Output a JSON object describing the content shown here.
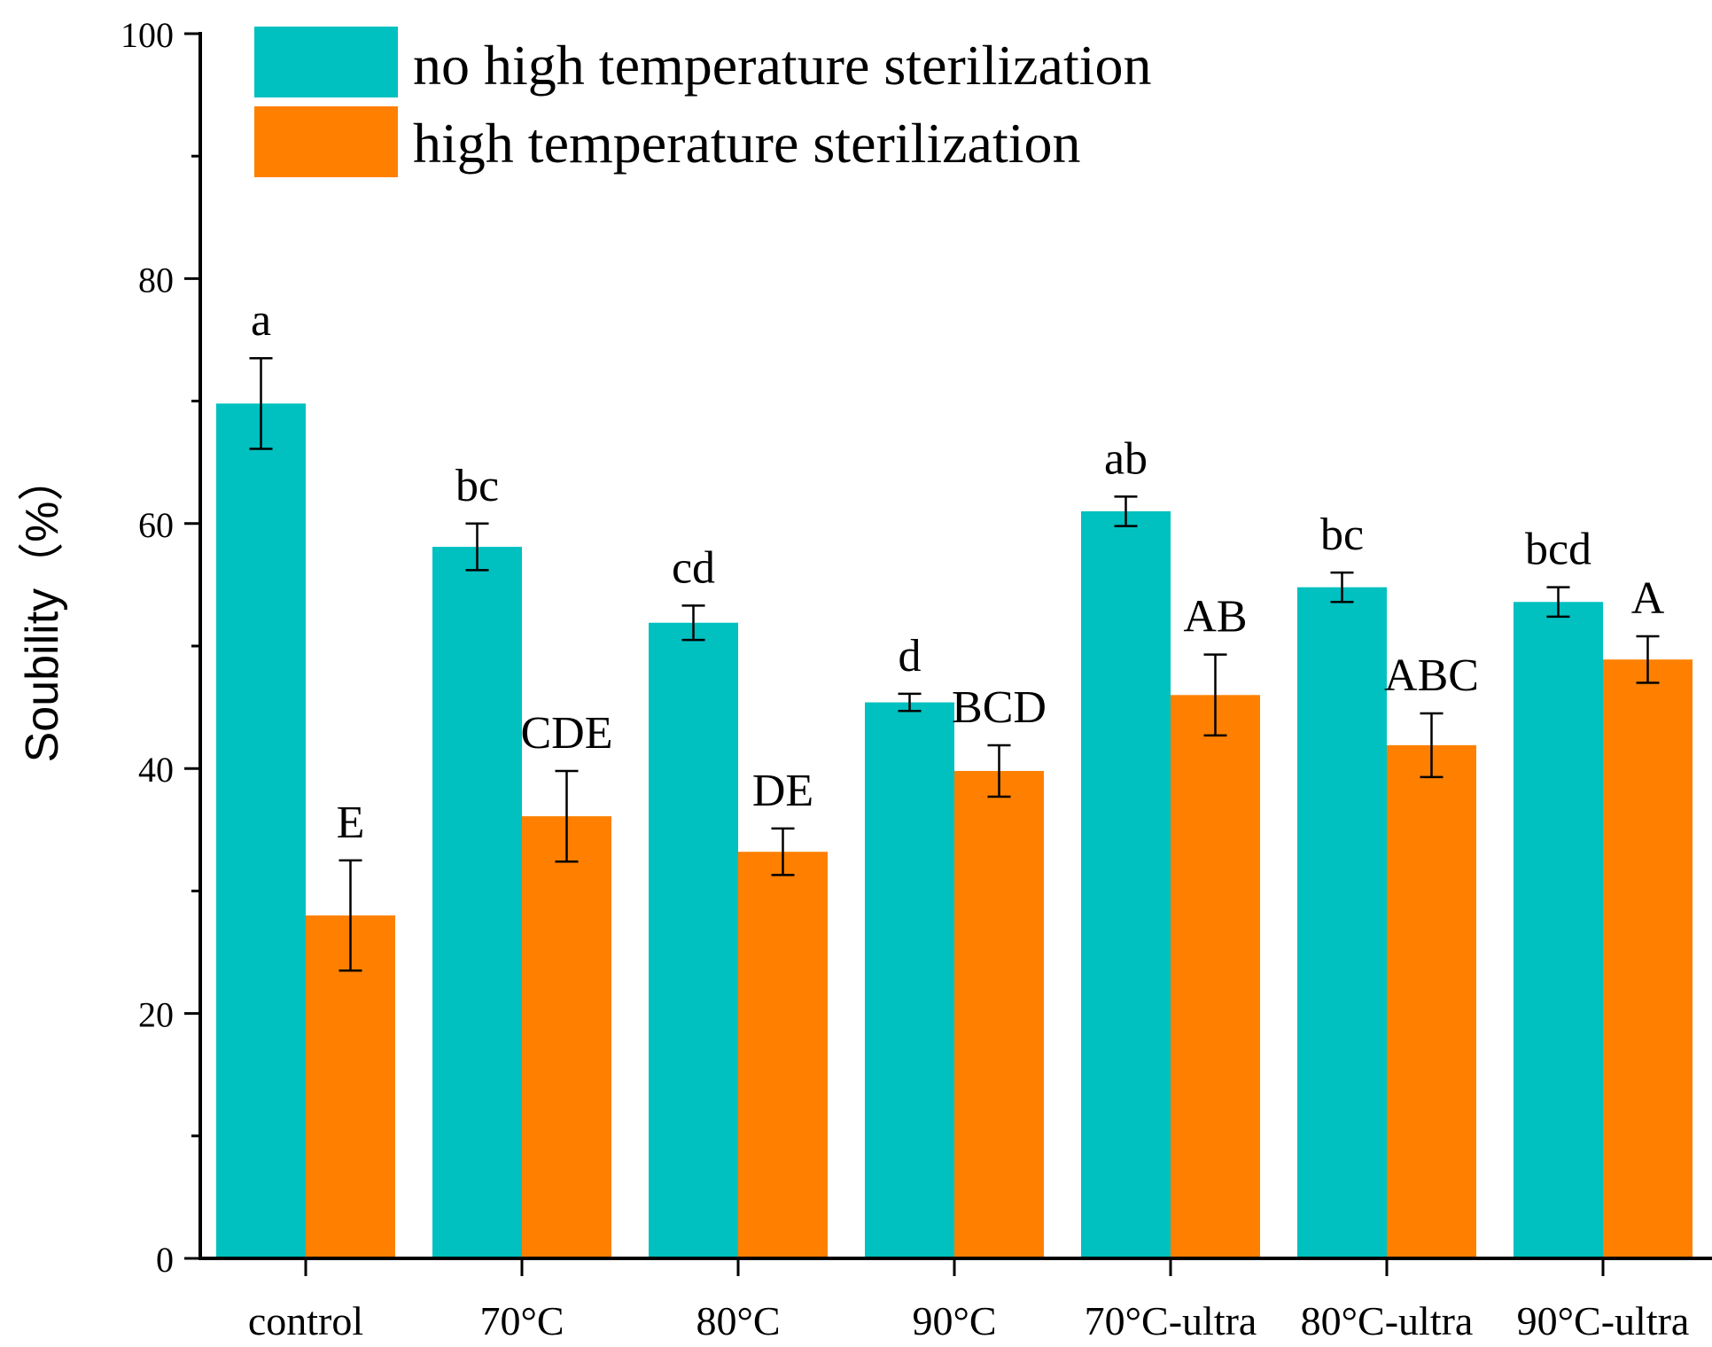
{
  "chart_data": {
    "type": "bar",
    "title": "",
    "xlabel": "",
    "ylabel": "Soubility（%）",
    "ylim": [
      0,
      100
    ],
    "yticks": [
      0,
      20,
      40,
      60,
      80,
      100
    ],
    "yminor_step": 10,
    "grid": false,
    "legend_position": "top-left",
    "categories": [
      "control",
      "70°C",
      "80°C",
      "90°C",
      "70°C-ultra",
      "80°C-ultra",
      "90°C-ultra"
    ],
    "series": [
      {
        "name": "no high temperature sterilization",
        "color": "#00c0c0",
        "values": [
          69.8,
          58.1,
          51.9,
          45.4,
          61.0,
          54.8,
          53.6
        ],
        "errors": [
          3.7,
          1.9,
          1.4,
          0.7,
          1.2,
          1.2,
          1.2
        ],
        "labels": [
          "a",
          "bc",
          "cd",
          "d",
          "ab",
          "bc",
          "bcd"
        ]
      },
      {
        "name": "high temperature sterilization",
        "color": "#ff8000",
        "values": [
          28.0,
          36.1,
          33.2,
          39.8,
          46.0,
          41.9,
          48.9
        ],
        "errors": [
          4.5,
          3.7,
          1.9,
          2.1,
          3.3,
          2.6,
          1.9
        ],
        "labels": [
          "E",
          "CDE",
          "DE",
          "BCD",
          "AB",
          "ABC",
          "A"
        ]
      }
    ]
  }
}
